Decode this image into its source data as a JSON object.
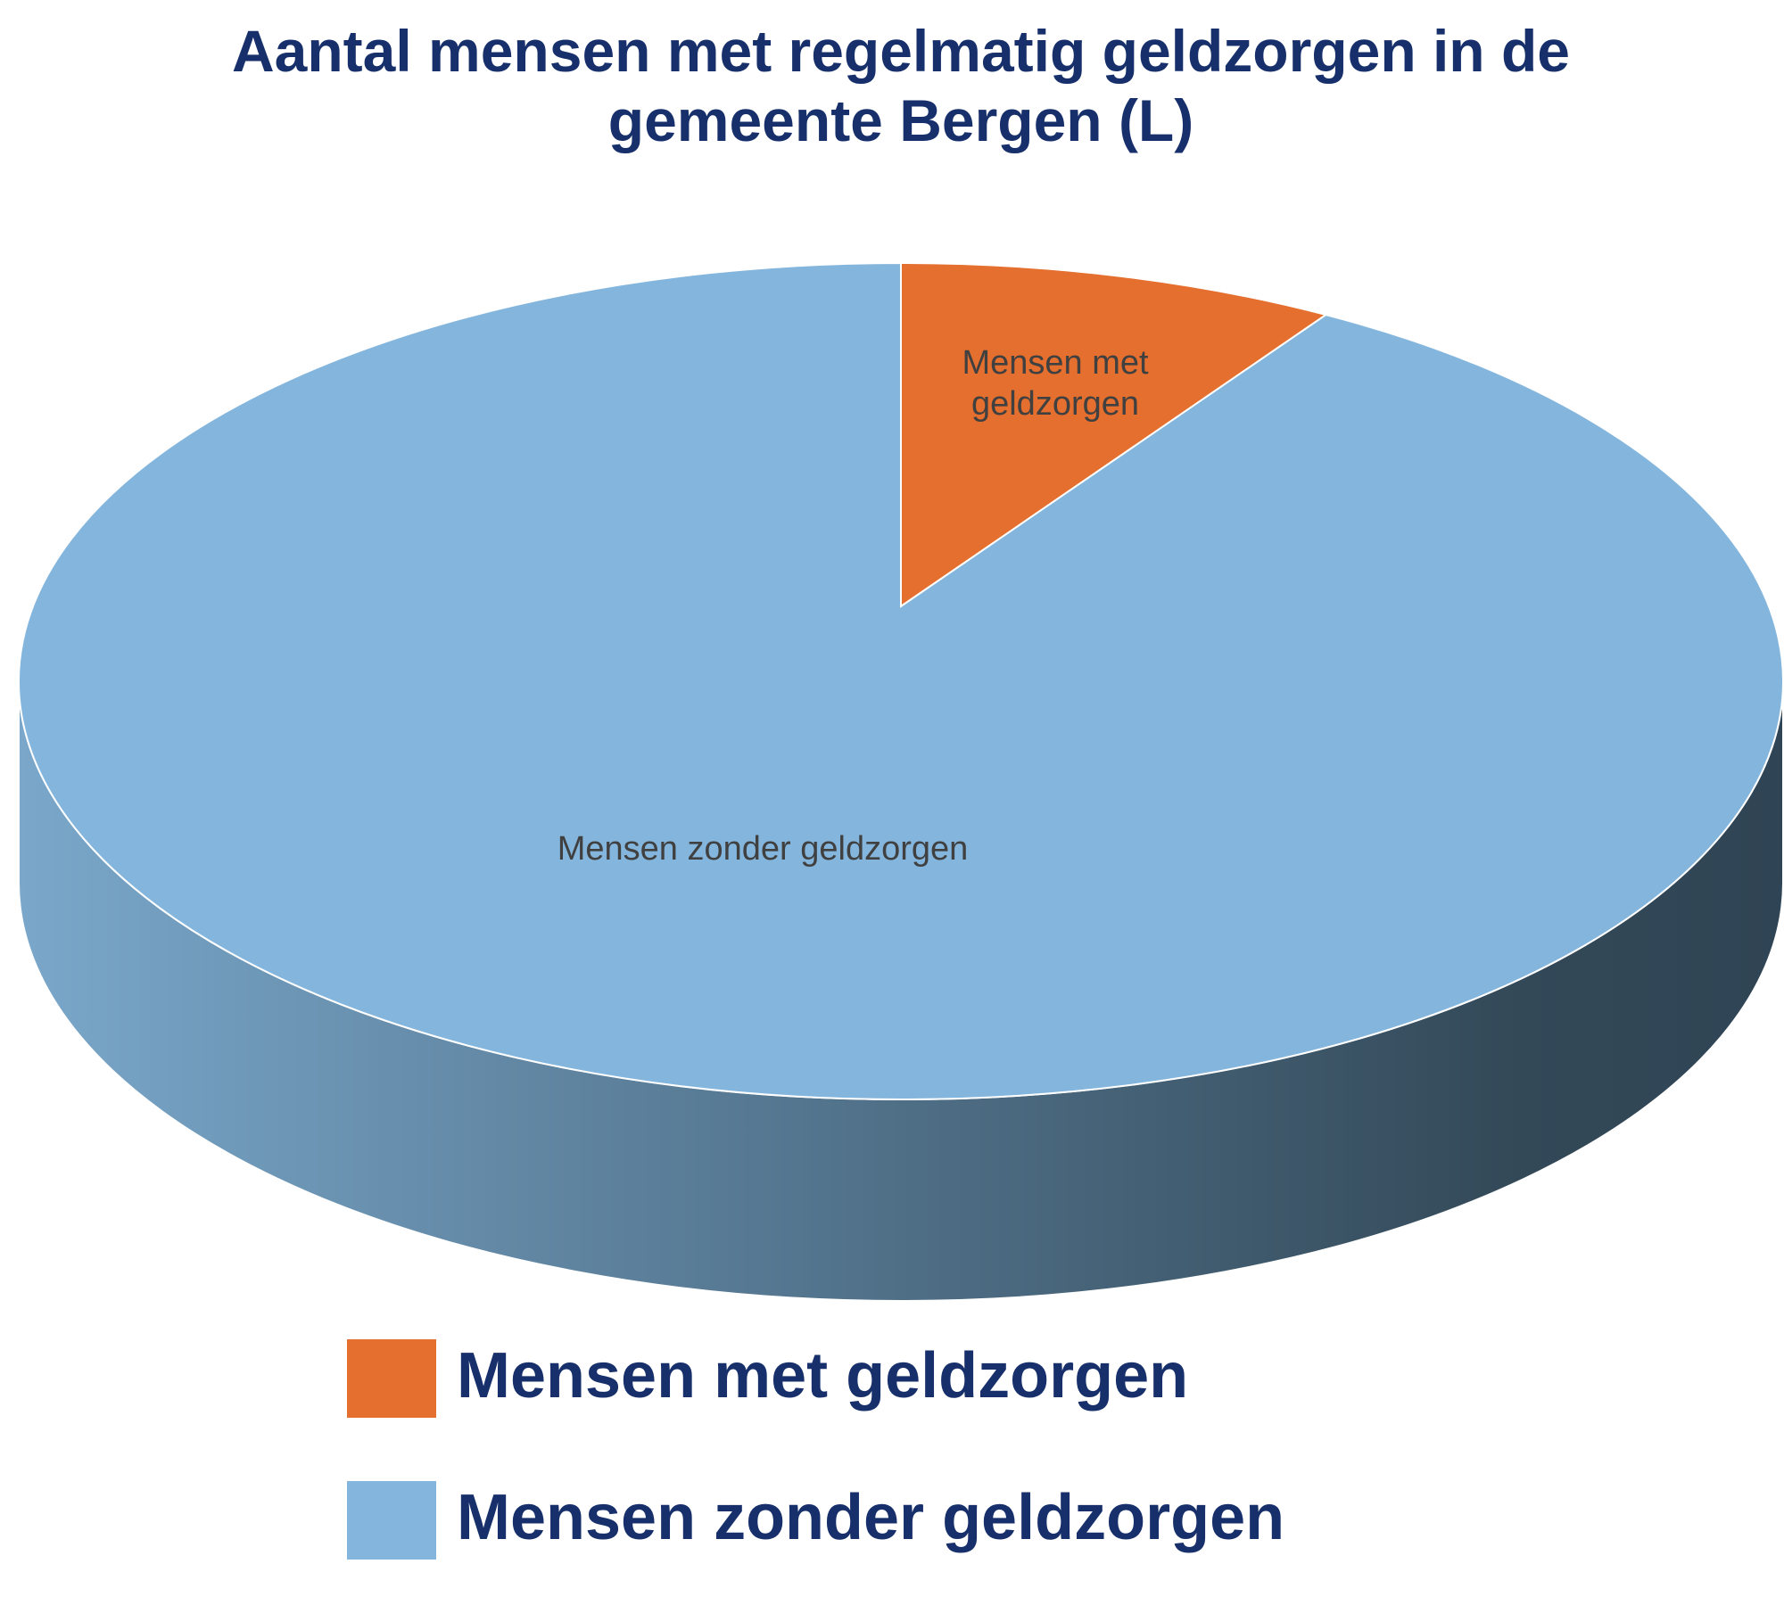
{
  "chart_data": {
    "type": "pie",
    "title": "Aantal mensen met regelmatig geldzorgen in de gemeente Bergen (L)",
    "categories": [
      "Mensen met geldzorgen",
      "Mensen zonder geldzorgen"
    ],
    "values": [
      8,
      92
    ],
    "colors": [
      "#e46f2e",
      "#84b6dd"
    ],
    "legend": "bottom"
  }
}
